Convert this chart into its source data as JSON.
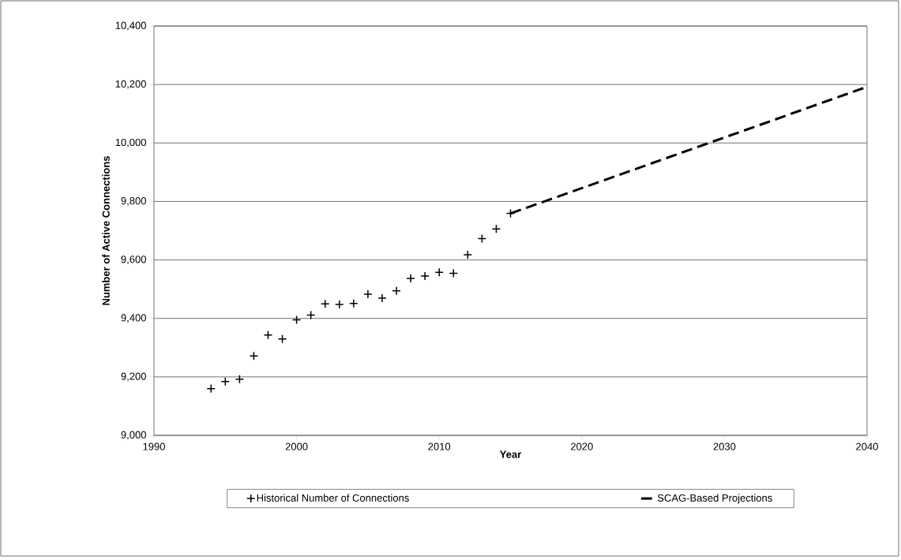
{
  "chart_data": {
    "type": "scatter",
    "xlabel": "Year",
    "ylabel": "Number of Active Connections",
    "xlim": [
      1990,
      2040
    ],
    "xticks": [
      1990,
      2000,
      2010,
      2020,
      2030,
      2040
    ],
    "ylim": [
      9000,
      10400
    ],
    "yticks": [
      {
        "value": 9000,
        "label": "9,000"
      },
      {
        "value": 9200,
        "label": "9,200"
      },
      {
        "value": 9400,
        "label": "9,400"
      },
      {
        "value": 9600,
        "label": "9,600"
      },
      {
        "value": 9800,
        "label": "9,800"
      },
      {
        "value": 10000,
        "label": "10,000"
      },
      {
        "value": 10200,
        "label": "10,200"
      },
      {
        "value": 10400,
        "label": "10,400"
      }
    ],
    "grid": "y",
    "legend": "bottom",
    "series": [
      {
        "name": "Historical Number of Connections",
        "color": "#000000",
        "marker": "cross",
        "x": [
          1994,
          1995,
          1996,
          1997,
          1998,
          1999,
          2000,
          2001,
          2002,
          2003,
          2004,
          2005,
          2006,
          2007,
          2008,
          2009,
          2010,
          2011,
          2012,
          2013,
          2014,
          2015
        ],
        "values": [
          9160,
          9184,
          9192,
          9272,
          9343,
          9330,
          9395,
          9411,
          9450,
          9448,
          9451,
          9483,
          9469,
          9494,
          9537,
          9545,
          9558,
          9554,
          9618,
          9673,
          9706,
          9759
        ]
      },
      {
        "name": "SCAG-Based Projections",
        "type": "line",
        "color": "#000000",
        "marker": "none",
        "line_style": "dashed",
        "x": [
          2015,
          2040
        ],
        "values": [
          9759,
          10192
        ]
      }
    ]
  }
}
